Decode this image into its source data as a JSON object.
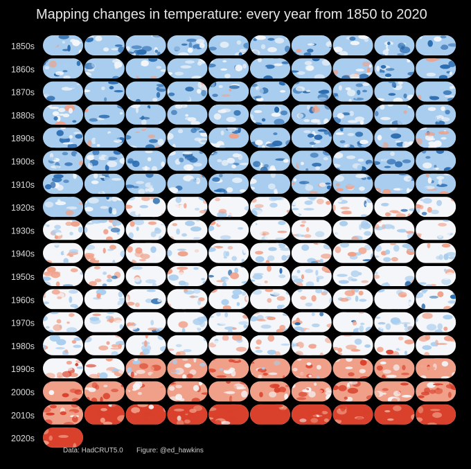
{
  "chart_data": {
    "type": "heatmap",
    "title": "Mapping changes in temperature: every year from 1850 to 2020",
    "row_labels": [
      "1850s",
      "1860s",
      "1870s",
      "1880s",
      "1890s",
      "1900s",
      "1910s",
      "1920s",
      "1930s",
      "1940s",
      "1950s",
      "1960s",
      "1970s",
      "1980s",
      "1990s",
      "2000s",
      "2010s",
      "2020s"
    ],
    "columns_per_row": 10,
    "first_year": 1850,
    "last_year": 2020,
    "year_count": 171,
    "colors": {
      "cold": "#2b6cb0",
      "cool": "#a9cdee",
      "neutral": "#f4f6f9",
      "warm": "#f0a088",
      "hot": "#d9412c",
      "background": "#000000"
    },
    "credits": {
      "data": "Data: HadCRUT5.0",
      "figure": "Figure: @ed_hawkins"
    }
  }
}
